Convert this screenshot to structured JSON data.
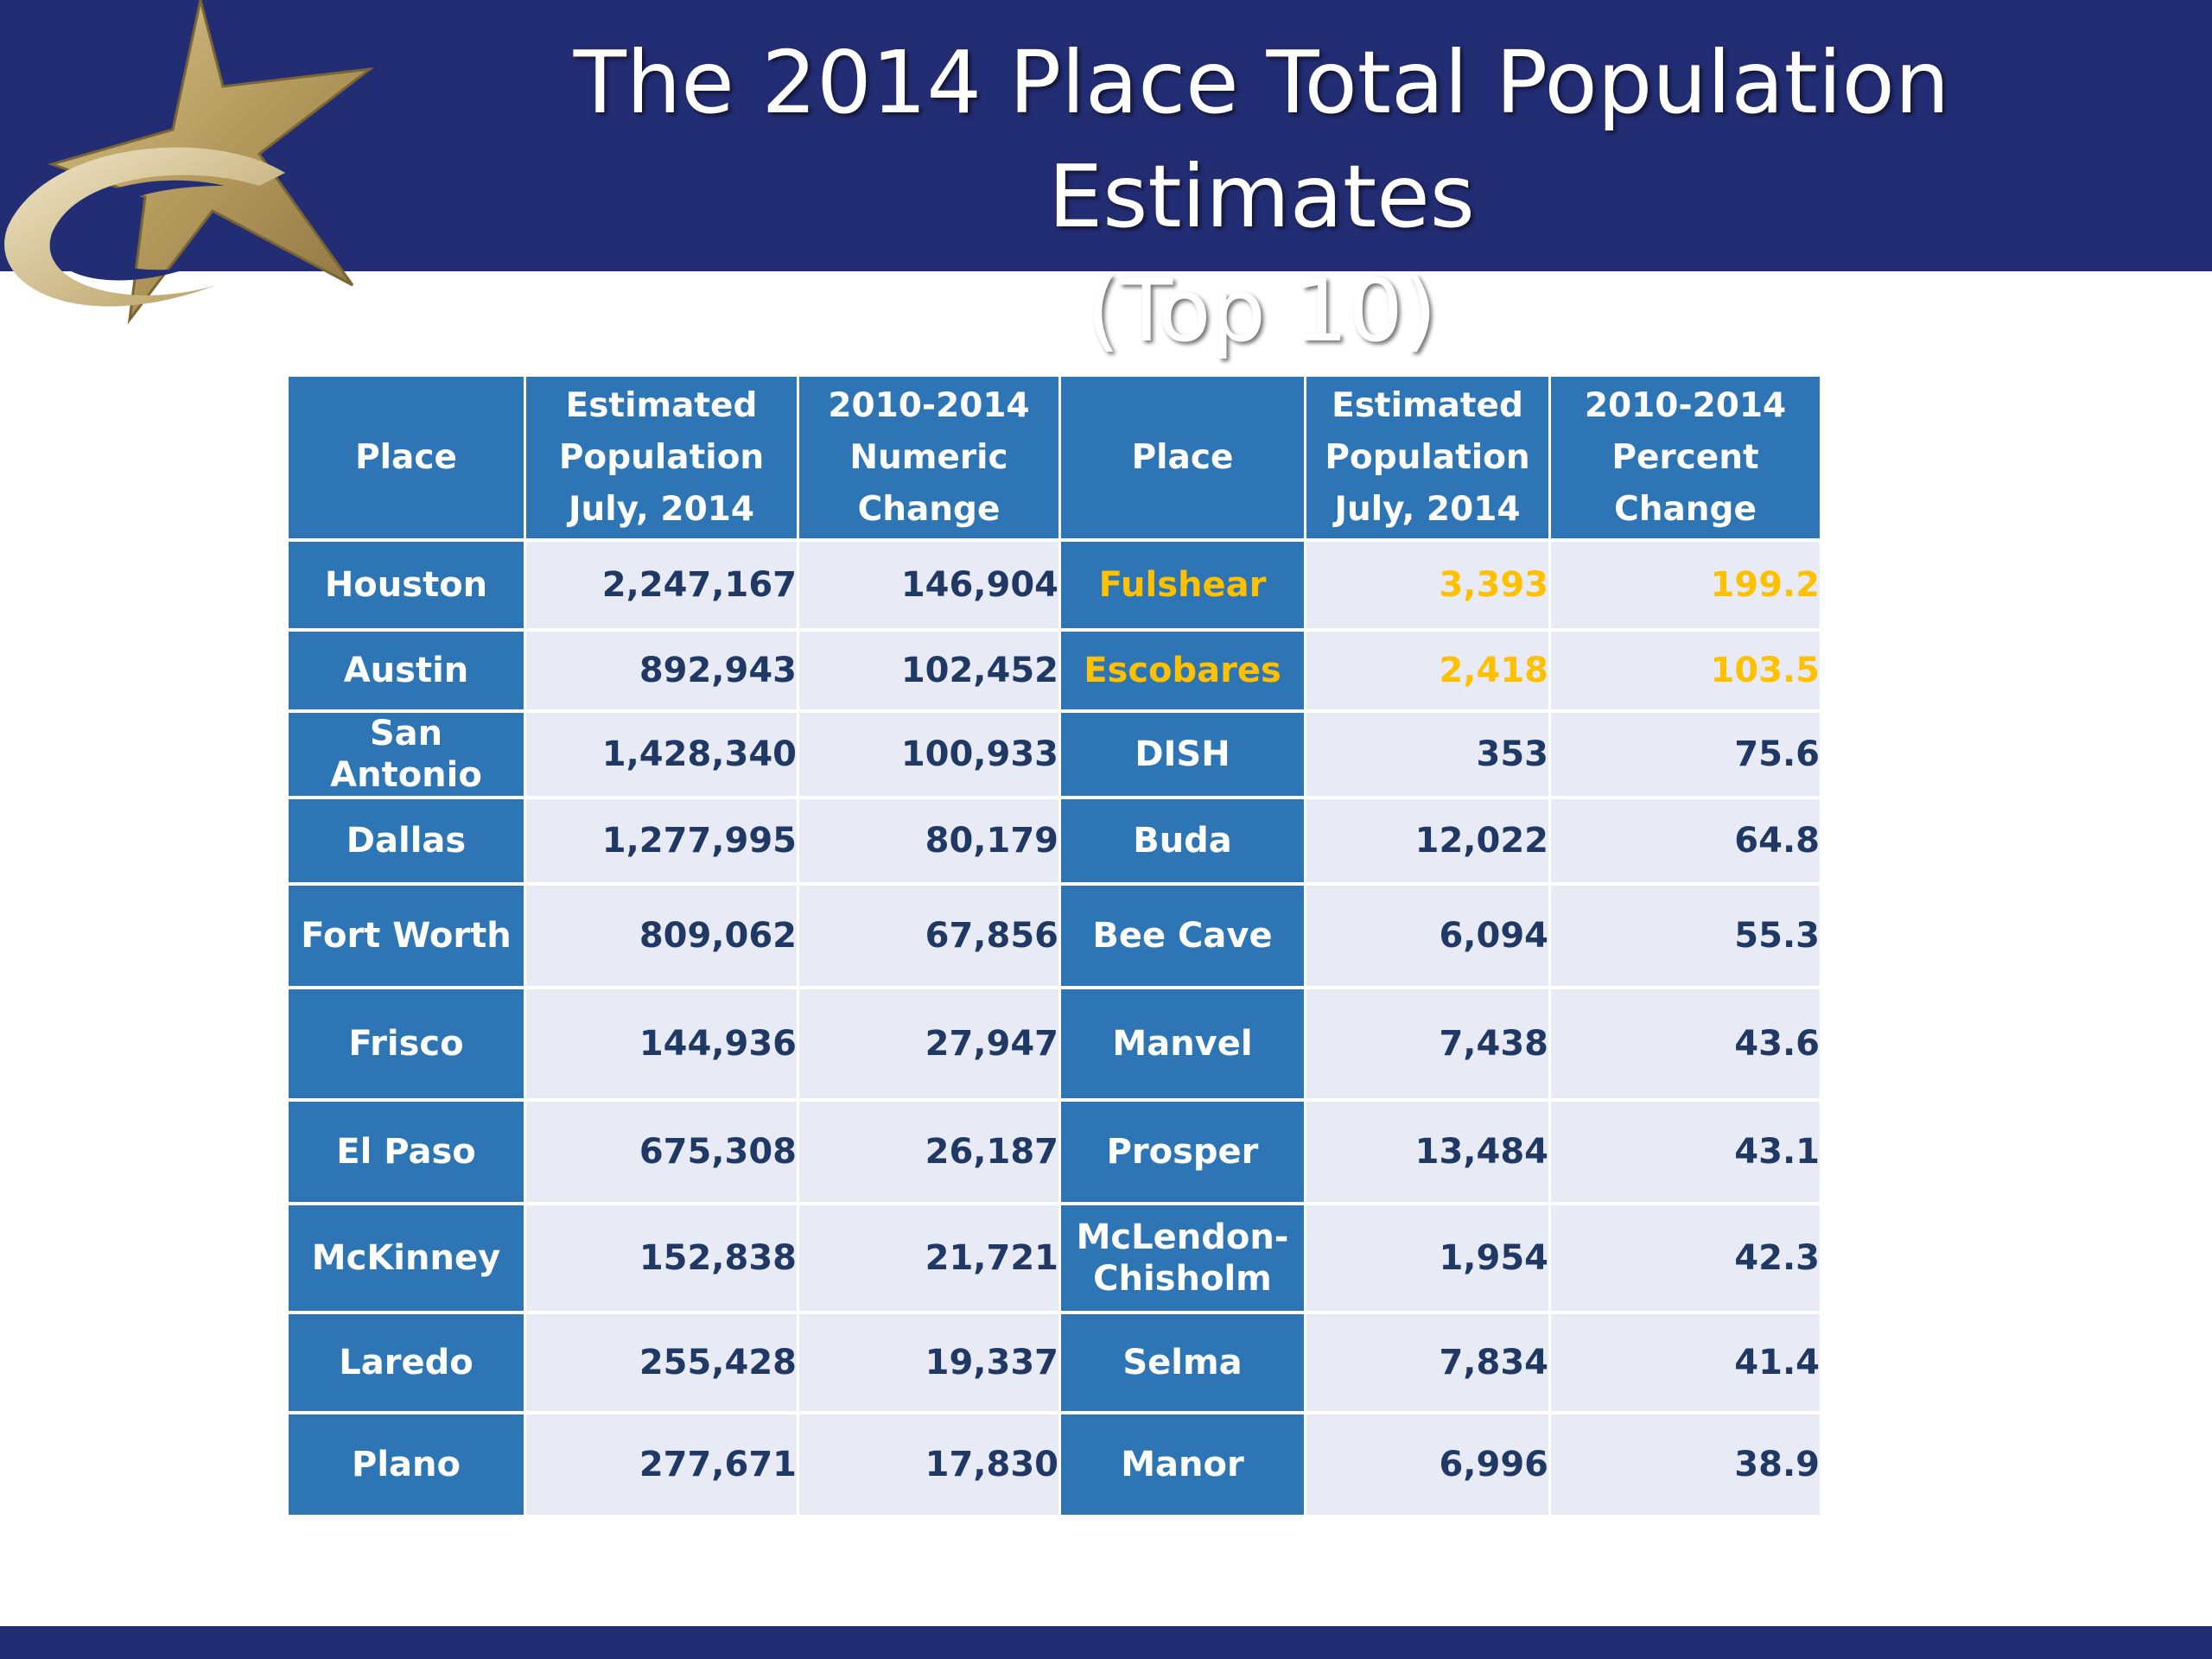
{
  "slide": {
    "title_line1": "The 2014 Place Total Population Estimates",
    "title_line2": "(Top 10)"
  },
  "colors": {
    "banner": "#232d73",
    "header_cell": "#2e75b6",
    "data_cell": "#e8ebf5",
    "number_text": "#1f3864",
    "highlight": "#ffc000",
    "logo_gold": "#b49a5c"
  },
  "logo": {
    "icon": "gold-star-swoosh-logo"
  },
  "table": {
    "headers": {
      "place": "Place",
      "est_pop": [
        "Estimated",
        "Population",
        "July, 2014"
      ],
      "numeric_change": [
        "2010-2014",
        "Numeric",
        "Change"
      ],
      "place2": "Place",
      "est_pop2": [
        "Estimated",
        "Population",
        "July, 2014"
      ],
      "percent_change": [
        "2010-2014",
        "Percent",
        "Change"
      ]
    },
    "rows": [
      {
        "place": "Houston",
        "pop": "2,247,167",
        "change": "146,904",
        "place2": "Fulshear",
        "pop2": "3,393",
        "pct": "199.2",
        "highlight": true
      },
      {
        "place": "Austin",
        "pop": "892,943",
        "change": "102,452",
        "place2": "Escobares",
        "pop2": "2,418",
        "pct": "103.5",
        "highlight": true
      },
      {
        "place": "San Antonio",
        "pop": "1,428,340",
        "change": "100,933",
        "place2": "DISH",
        "pop2": "353",
        "pct": "75.6",
        "highlight": false
      },
      {
        "place": "Dallas",
        "pop": "1,277,995",
        "change": "80,179",
        "place2": "Buda",
        "pop2": "12,022",
        "pct": "64.8",
        "highlight": false
      },
      {
        "place": "Fort Worth",
        "pop": "809,062",
        "change": "67,856",
        "place2": "Bee Cave",
        "pop2": "6,094",
        "pct": "55.3",
        "highlight": false
      },
      {
        "place": "Frisco",
        "pop": "144,936",
        "change": "27,947",
        "place2": "Manvel",
        "pop2": "7,438",
        "pct": "43.6",
        "highlight": false
      },
      {
        "place": "El Paso",
        "pop": "675,308",
        "change": "26,187",
        "place2": "Prosper",
        "pop2": "13,484",
        "pct": "43.1",
        "highlight": false
      },
      {
        "place": "McKinney",
        "pop": "152,838",
        "change": "21,721",
        "place2": [
          "McLendon-",
          "Chisholm"
        ],
        "pop2": "1,954",
        "pct": "42.3",
        "highlight": false
      },
      {
        "place": "Laredo",
        "pop": "255,428",
        "change": "19,337",
        "place2": "Selma",
        "pop2": "7,834",
        "pct": "41.4",
        "highlight": false
      },
      {
        "place": "Plano",
        "pop": "277,671",
        "change": "17,830",
        "place2": "Manor",
        "pop2": "6,996",
        "pct": "38.9",
        "highlight": false
      }
    ]
  }
}
